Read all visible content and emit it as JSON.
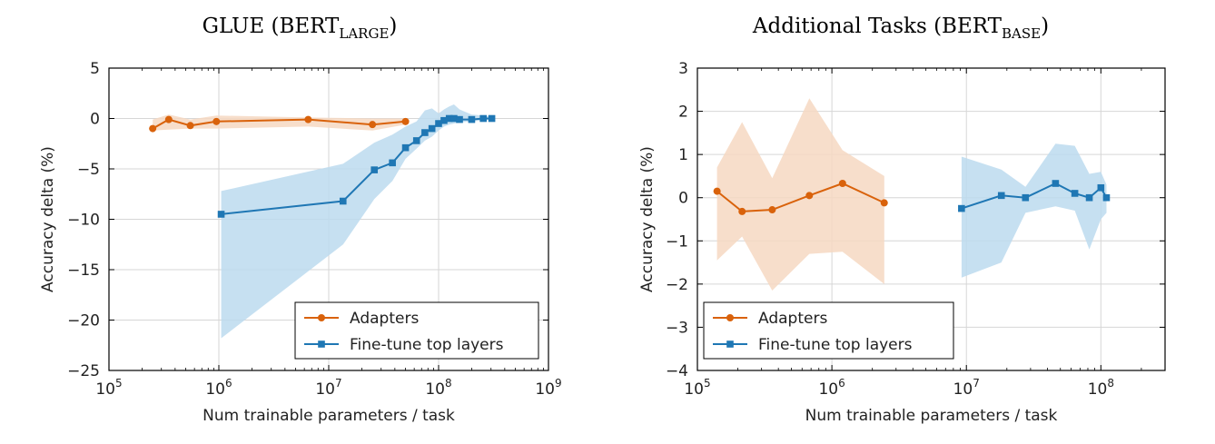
{
  "colors": {
    "adapters": "#d9620b",
    "finetune": "#1f77b4",
    "adapters_band": "#f6d8c2",
    "finetune_band": "#bcdaee"
  },
  "chart_data": [
    {
      "type": "line",
      "title": "GLUE (BERT",
      "title_sub": "LARGE",
      "title_end": ")",
      "xlabel": "Num trainable parameters / task",
      "ylabel": "Accuracy delta (%)",
      "xscale": "log",
      "xlim": [
        100000,
        1000000000
      ],
      "ylim": [
        -25,
        5
      ],
      "yticks": [
        5,
        0,
        -5,
        -10,
        -15,
        -20,
        -25
      ],
      "ytick_labels": [
        "5",
        "0",
        "−5",
        "−10",
        "−15",
        "−20",
        "−25"
      ],
      "xticks": [
        100000,
        1000000,
        10000000,
        100000000,
        1000000000
      ],
      "xtick_labels": [
        [
          "10",
          "5"
        ],
        [
          "10",
          "6"
        ],
        [
          "10",
          "7"
        ],
        [
          "10",
          "8"
        ],
        [
          "10",
          "9"
        ]
      ],
      "grid": true,
      "legend_position": "lower-right",
      "series": [
        {
          "name": "Adapters",
          "color_key": "adapters",
          "marker": "circle",
          "x": [
            250000,
            350000,
            550000,
            950000,
            6500000,
            25000000,
            50000000
          ],
          "y": [
            -1.0,
            -0.1,
            -0.7,
            -0.3,
            -0.1,
            -0.6,
            -0.3
          ],
          "band_upper": [
            -0.1,
            0.4,
            -0.1,
            0.3,
            0.1,
            0.0,
            0.0
          ],
          "band_lower": [
            -1.2,
            -1.1,
            -1.0,
            -1.0,
            -0.8,
            -1.2,
            -0.6
          ]
        },
        {
          "name": "Fine-tune top layers",
          "color_key": "finetune",
          "marker": "square",
          "x": [
            1050000,
            13500000,
            26000000,
            38000000,
            50000000,
            63000000,
            75000000,
            87000000,
            100000000,
            112000000,
            125000000,
            138000000,
            155000000,
            200000000,
            255000000,
            305000000
          ],
          "y": [
            -9.5,
            -8.2,
            -5.1,
            -4.4,
            -2.9,
            -2.2,
            -1.4,
            -1.0,
            -0.5,
            -0.2,
            0.0,
            0.0,
            -0.1,
            -0.1,
            0.0,
            0.0
          ],
          "band_upper": [
            -7.2,
            -4.5,
            -2.4,
            -1.6,
            -0.8,
            -0.3,
            0.8,
            1.0,
            0.5,
            0.9,
            1.2,
            1.4,
            0.9,
            0.4,
            0.3,
            0.2
          ],
          "band_lower": [
            -21.8,
            -12.5,
            -8.0,
            -6.2,
            -4.0,
            -3.0,
            -2.2,
            -1.8,
            -1.2,
            -0.8,
            -0.6,
            -0.5,
            -0.4,
            -0.3,
            -0.2,
            -0.1
          ]
        }
      ]
    },
    {
      "type": "line",
      "title": "Additional Tasks (BERT",
      "title_sub": "BASE",
      "title_end": ")",
      "xlabel": "Num trainable parameters / task",
      "ylabel": "Accuracy delta (%)",
      "xscale": "log",
      "xlim": [
        100000,
        300000000
      ],
      "ylim": [
        -4,
        3
      ],
      "yticks": [
        3,
        2,
        1,
        0,
        -1,
        -2,
        -3,
        -4
      ],
      "ytick_labels": [
        "3",
        "2",
        "1",
        "0",
        "−1",
        "−2",
        "−3",
        "−4"
      ],
      "xticks": [
        100000,
        1000000,
        10000000,
        100000000
      ],
      "xtick_labels": [
        [
          "10",
          "5"
        ],
        [
          "10",
          "6"
        ],
        [
          "10",
          "7"
        ],
        [
          "10",
          "8"
        ]
      ],
      "grid": true,
      "legend_position": "lower-left",
      "series": [
        {
          "name": "Adapters",
          "color_key": "adapters",
          "marker": "circle",
          "x": [
            140000,
            215000,
            360000,
            680000,
            1200000,
            2450000
          ],
          "y": [
            0.15,
            -0.32,
            -0.28,
            0.05,
            0.33,
            -0.12
          ],
          "band_upper": [
            0.7,
            1.75,
            0.45,
            2.3,
            1.1,
            0.5
          ],
          "band_lower": [
            -1.45,
            -0.9,
            -2.15,
            -1.3,
            -1.25,
            -2.0
          ]
        },
        {
          "name": "Fine-tune top layers",
          "color_key": "finetune",
          "marker": "square",
          "x": [
            9200000,
            18200000,
            27500000,
            46000000,
            64000000,
            82000000,
            100000000,
            110000000
          ],
          "y": [
            -0.25,
            0.05,
            0.0,
            0.33,
            0.1,
            0.0,
            0.23,
            0.0
          ],
          "band_upper": [
            0.95,
            0.65,
            0.25,
            1.25,
            1.2,
            0.55,
            0.6,
            0.3
          ],
          "band_lower": [
            -1.85,
            -1.5,
            -0.35,
            -0.2,
            -0.3,
            -1.2,
            -0.5,
            -0.35
          ]
        }
      ]
    }
  ]
}
